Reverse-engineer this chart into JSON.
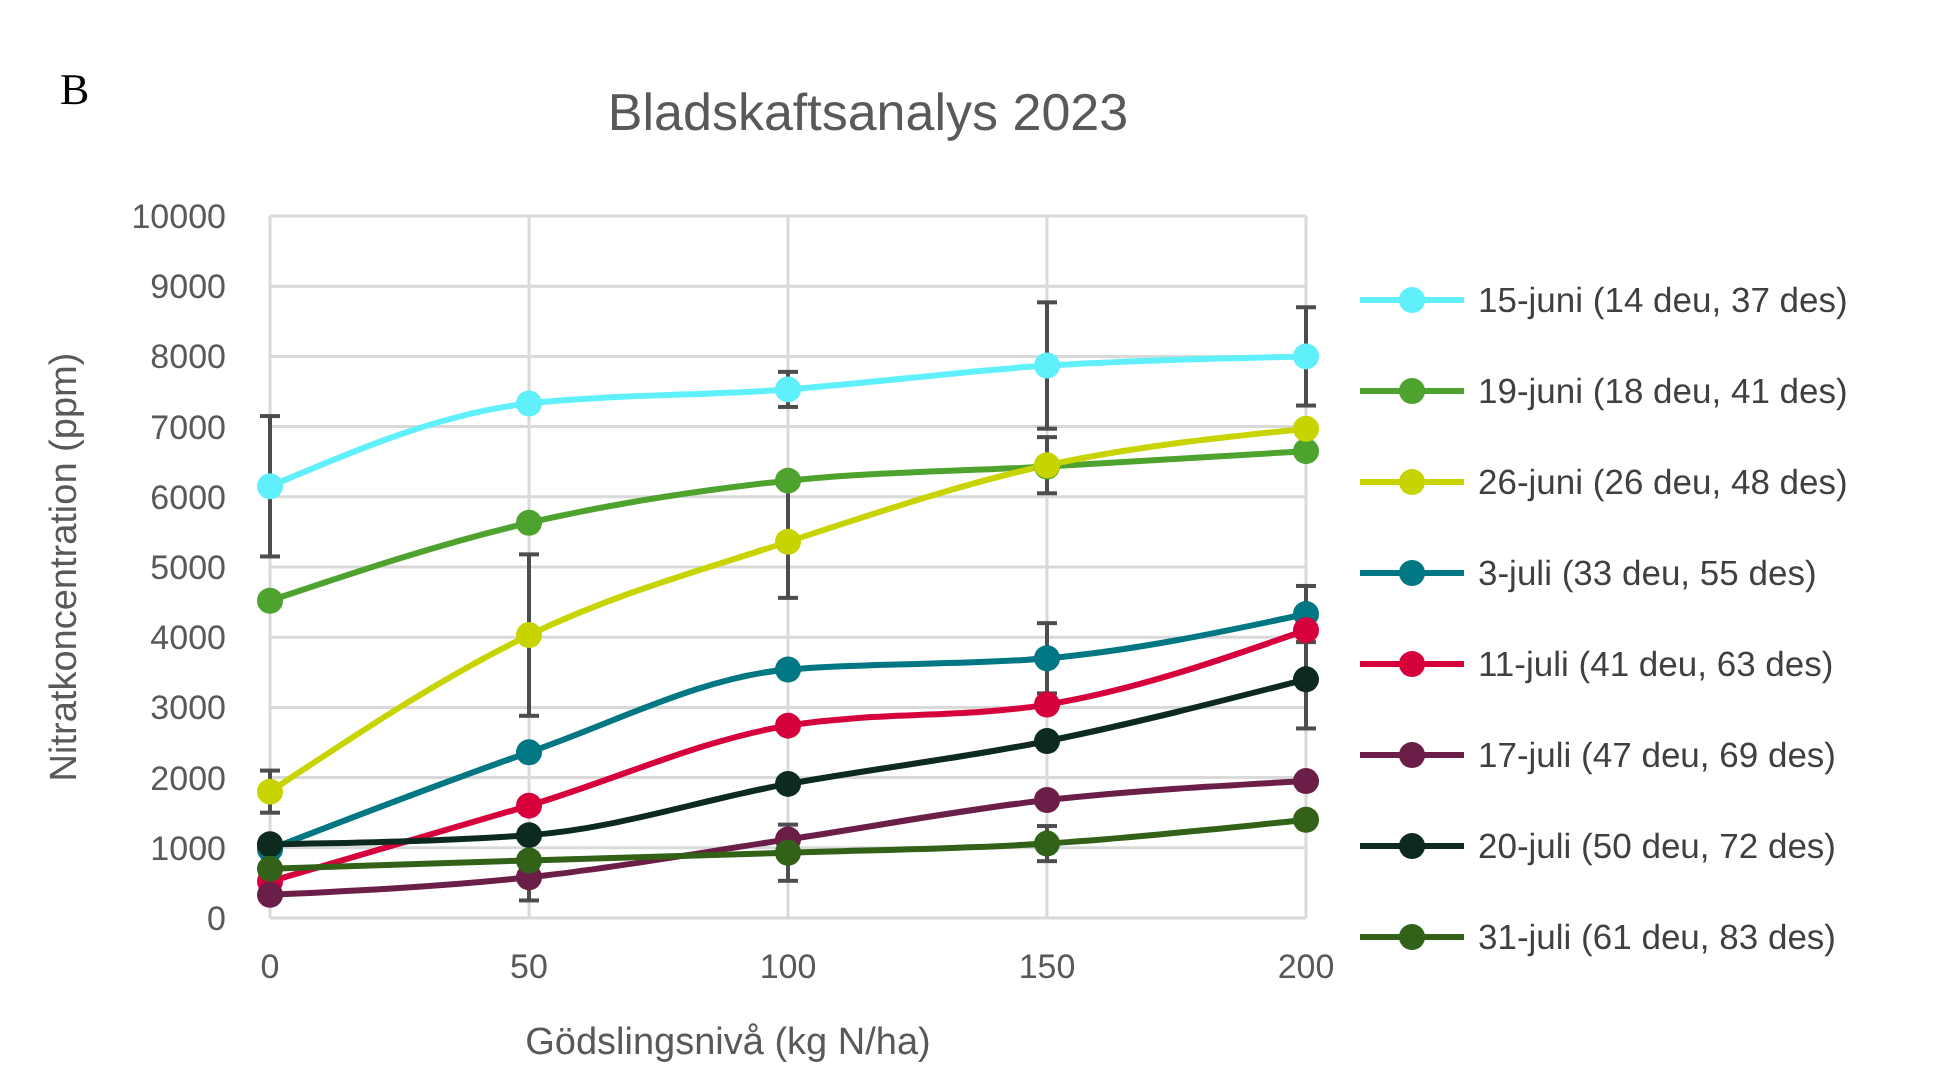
{
  "chart_data": {
    "type": "line",
    "title": "Bladskaftsanalys 2023",
    "xlabel": "Gödslingsnivå (kg N/ha)",
    "ylabel": "Nitratkoncentration (ppm)",
    "annotations": [
      "B"
    ],
    "x": [
      0,
      50,
      100,
      150,
      200
    ],
    "xlim": [
      0,
      200
    ],
    "xticks": [
      0,
      50,
      100,
      150,
      200
    ],
    "ylim": [
      0,
      10000
    ],
    "yticks": [
      0,
      1000,
      2000,
      3000,
      4000,
      5000,
      6000,
      7000,
      8000,
      9000,
      10000
    ],
    "grid": true,
    "legend": "right",
    "marker": "circle",
    "line_style": "solid",
    "series": [
      {
        "name": "15-juni (14 deu, 37 des)",
        "color": "#5ff0fc",
        "values": [
          6150,
          7330,
          7530,
          7870,
          8000
        ],
        "errors": [
          1000,
          null,
          250,
          900,
          700
        ]
      },
      {
        "name": "19-juni (18 deu, 41 des)",
        "color": "#4ea32f",
        "values": [
          4520,
          5630,
          6230,
          6430,
          6650
        ]
      },
      {
        "name": "26-juni (26 deu, 48 des)",
        "color": "#c8d400",
        "values": [
          1800,
          4030,
          5360,
          6450,
          6970
        ],
        "errors": [
          300,
          1150,
          800,
          400,
          null
        ]
      },
      {
        "name": "3-juli (33 deu, 55 des)",
        "color": "#007782",
        "values": [
          980,
          2360,
          3540,
          3700,
          4330
        ],
        "errors": [
          null,
          null,
          null,
          500,
          400
        ]
      },
      {
        "name": "11-juli (41 deu, 63 des)",
        "color": "#d6003d",
        "values": [
          520,
          1600,
          2740,
          3040,
          4100
        ]
      },
      {
        "name": "17-juli (47 deu, 69 des)",
        "color": "#6b1f48",
        "values": [
          330,
          580,
          1120,
          1680,
          1950
        ],
        "errors": [
          null,
          330,
          null,
          null,
          null
        ]
      },
      {
        "name": "20-juli (50 deu, 72 des)",
        "color": "#0c2a1e",
        "values": [
          1050,
          1180,
          1910,
          2520,
          3400
        ],
        "errors": [
          null,
          null,
          null,
          null,
          700
        ]
      },
      {
        "name": "31-juli (61 deu, 83 des)",
        "color": "#326218",
        "values": [
          700,
          820,
          930,
          1060,
          1400
        ],
        "errors": [
          null,
          null,
          400,
          250,
          null
        ]
      }
    ]
  }
}
